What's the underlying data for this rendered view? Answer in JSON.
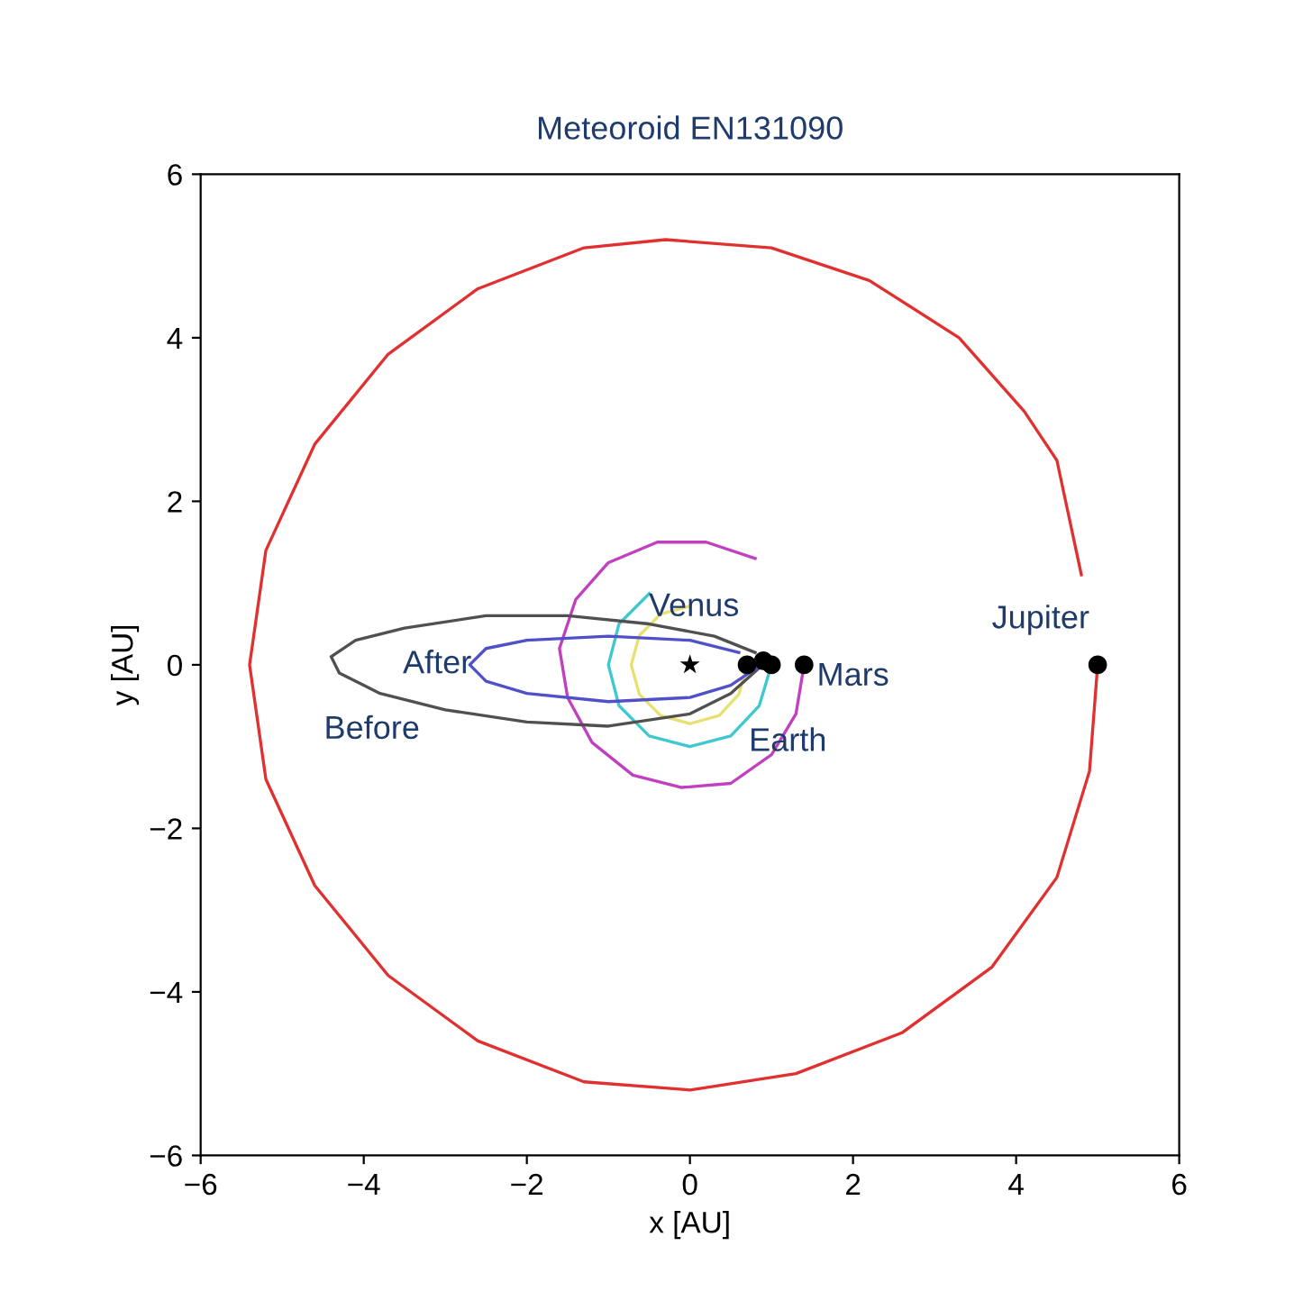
{
  "chart_data": {
    "type": "line",
    "title": "Meteoroid EN131090",
    "xlabel": "x [AU]",
    "ylabel": "y [AU]",
    "xlim": [
      -6,
      6
    ],
    "ylim": [
      -6,
      6
    ],
    "xticks": [
      -6,
      -4,
      -2,
      0,
      2,
      4,
      6
    ],
    "yticks": [
      -6,
      -4,
      -2,
      0,
      2,
      4,
      6
    ],
    "grid": false,
    "legend": false,
    "series": [
      {
        "name": "Jupiter",
        "color": "#e03030",
        "x": [
          5.0,
          4.9,
          4.5,
          3.7,
          2.6,
          1.3,
          0,
          -1.3,
          -2.6,
          -3.7,
          -4.6,
          -5.2,
          -5.4,
          -5.2,
          -4.6,
          -3.7,
          -2.6,
          -1.3,
          -0.3,
          1.0,
          2.2,
          3.3,
          4.1,
          4.5,
          4.8
        ],
        "values": [
          0,
          -1.3,
          -2.6,
          -3.7,
          -4.5,
          -5.0,
          -5.2,
          -5.1,
          -4.6,
          -3.8,
          -2.7,
          -1.4,
          0,
          1.4,
          2.7,
          3.8,
          4.6,
          5.1,
          5.2,
          5.1,
          4.7,
          4.0,
          3.1,
          2.5,
          1.1
        ]
      },
      {
        "name": "Mars",
        "color": "#c040c0",
        "x": [
          1.4,
          1.3,
          1.0,
          0.5,
          -0.1,
          -0.7,
          -1.2,
          -1.5,
          -1.6,
          -1.4,
          -1.0,
          -0.4,
          0.2,
          0.8
        ],
        "values": [
          0,
          -0.6,
          -1.1,
          -1.45,
          -1.5,
          -1.35,
          -0.95,
          -0.4,
          0.2,
          0.8,
          1.25,
          1.5,
          1.5,
          1.3
        ]
      },
      {
        "name": "Earth",
        "color": "#40c8d0",
        "x": [
          1.0,
          0.85,
          0.5,
          0,
          -0.5,
          -0.87,
          -1.0,
          -0.87,
          -0.5
        ],
        "values": [
          0,
          -0.5,
          -0.87,
          -1.0,
          -0.87,
          -0.5,
          0,
          0.5,
          0.87
        ]
      },
      {
        "name": "Venus",
        "color": "#e8e070",
        "x": [
          0.7,
          0.6,
          0.36,
          0,
          -0.36,
          -0.62,
          -0.72,
          -0.62,
          -0.36,
          0
        ],
        "values": [
          0,
          -0.36,
          -0.62,
          -0.72,
          -0.62,
          -0.36,
          0,
          0.36,
          0.62,
          0.72
        ]
      },
      {
        "name": "Before",
        "color": "#505050",
        "x": [
          0.95,
          0.5,
          0,
          -1,
          -2,
          -3,
          -3.8,
          -4.3,
          -4.4,
          -4.1,
          -3.5,
          -2.5,
          -1.5,
          -0.5,
          0.3,
          0.8
        ],
        "values": [
          0.05,
          -0.35,
          -0.6,
          -0.75,
          -0.7,
          -0.55,
          -0.35,
          -0.1,
          0.1,
          0.3,
          0.45,
          0.6,
          0.6,
          0.5,
          0.35,
          0.15
        ]
      },
      {
        "name": "After",
        "color": "#5050c8",
        "x": [
          0.95,
          0.5,
          0,
          -1,
          -2,
          -2.5,
          -2.7,
          -2.5,
          -2,
          -1,
          0,
          0.6
        ],
        "values": [
          0.05,
          -0.25,
          -0.4,
          -0.45,
          -0.35,
          -0.2,
          0,
          0.2,
          0.3,
          0.35,
          0.3,
          0.15
        ]
      },
      {
        "type": "scatter",
        "color": "#000000",
        "marker": "circle",
        "x": [
          0.7,
          0.9,
          1.0,
          1.4,
          5.0
        ],
        "values": [
          0,
          0.05,
          0,
          0,
          0
        ]
      },
      {
        "type": "scatter",
        "color": "#000000",
        "marker": "star",
        "x": [
          0
        ],
        "values": [
          0
        ]
      }
    ]
  }
}
